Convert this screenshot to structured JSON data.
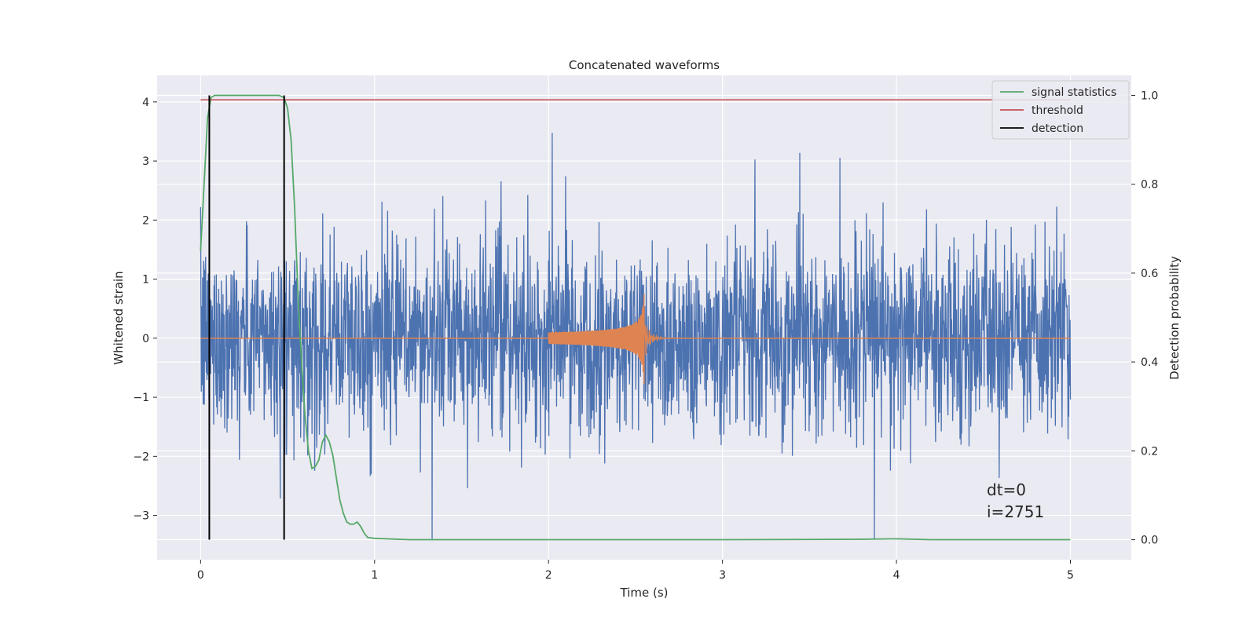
{
  "chart_data": {
    "type": "line",
    "title": "Concatenated waveforms",
    "xlabel": "Time (s)",
    "ylabel": "Whitened strain",
    "y2label": "Detection probability",
    "xlim": [
      -0.25,
      5.35
    ],
    "ylim": [
      -3.75,
      4.45
    ],
    "y2lim": [
      -0.045,
      1.045
    ],
    "xticks": [
      0,
      1,
      2,
      3,
      4,
      5
    ],
    "yticks": [
      -3,
      -2,
      -1,
      0,
      1,
      2,
      3,
      4
    ],
    "y2ticks": [
      0.0,
      0.2,
      0.4,
      0.6,
      0.8,
      1.0
    ],
    "grid": true,
    "legend_position": "top-right",
    "colors": {
      "strain": "#4c72b0",
      "template": "#dd8452",
      "statistics": "#55a868",
      "threshold": "#c44e52",
      "detection": "#000000",
      "background": "#eaeaf2",
      "grid": "#ffffff"
    },
    "legend": [
      {
        "label": "signal statistics",
        "color": "#55a868"
      },
      {
        "label": "threshold",
        "color": "#c44e52"
      },
      {
        "label": "detection",
        "color": "#000000"
      }
    ],
    "series": [
      {
        "axis": "left",
        "kind": "noise",
        "x_range": [
          0,
          5
        ],
        "approx_std": 0.8,
        "peak_range": [
          -3.4,
          3.8
        ]
      },
      {
        "axis": "left",
        "kind": "chirp",
        "x_range": [
          2.0,
          2.55
        ],
        "peak_amplitude": 0.8
      },
      {
        "axis": "right",
        "x": [
          0.0,
          0.02,
          0.04,
          0.06,
          0.08,
          0.12,
          0.3,
          0.45,
          0.48,
          0.5,
          0.52,
          0.54,
          0.56,
          0.58,
          0.6,
          0.62,
          0.64,
          0.66,
          0.68,
          0.7,
          0.72,
          0.74,
          0.76,
          0.78,
          0.8,
          0.82,
          0.84,
          0.86,
          0.88,
          0.9,
          0.92,
          0.94,
          0.96,
          1.0,
          1.2,
          2.0,
          3.0,
          3.8,
          4.0,
          4.2,
          5.0
        ],
        "y": [
          0.65,
          0.8,
          0.95,
          0.995,
          1.0,
          1.0,
          1.0,
          1.0,
          0.995,
          0.97,
          0.9,
          0.75,
          0.55,
          0.4,
          0.28,
          0.2,
          0.16,
          0.165,
          0.18,
          0.22,
          0.235,
          0.22,
          0.19,
          0.14,
          0.09,
          0.06,
          0.04,
          0.035,
          0.035,
          0.04,
          0.03,
          0.015,
          0.005,
          0.003,
          0.0,
          0.0,
          0.0,
          0.001,
          0.002,
          0.0,
          0.0
        ]
      },
      {
        "axis": "right",
        "kind": "threshold",
        "x_range": [
          0,
          5
        ],
        "value": 0.99
      },
      {
        "axis": "right",
        "kind": "detection",
        "x": [
          0.05,
          0.48
        ],
        "range": [
          0.0,
          1.0
        ]
      }
    ],
    "annotations": [
      "dt=0",
      "i=2751"
    ]
  }
}
